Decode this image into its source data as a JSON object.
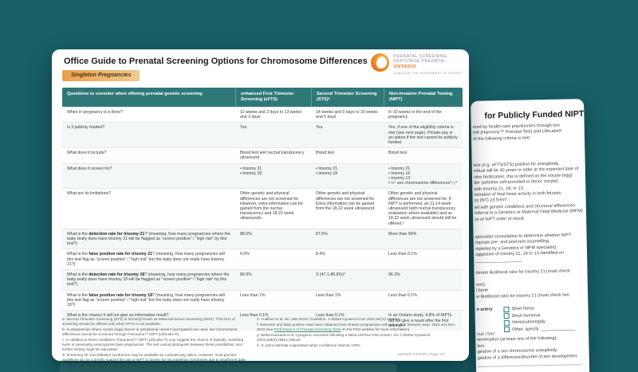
{
  "colors": {
    "background_teal": "#175F66",
    "table_header_teal": "#2F7878",
    "brand_orange": "#EE7623",
    "badge_gradient_start": "#EB9F4B",
    "badge_gradient_end": "#EECB90"
  },
  "page1": {
    "title": "Office Guide to Prenatal Screening Options for Chromosome Differences",
    "badge": "Singleton Pregnancies",
    "logo": {
      "line1": "PRENATAL SCREENING",
      "line2": "DÉPISTAGE PRÉNATAL",
      "line3": "ONTARIO",
      "line4": "FUNDED BY THE GOVERNMENT OF ONTARIO"
    },
    "table": {
      "headers": [
        "Questions to consider when offering prenatal genetic screening",
        "enhanced First Trimester Screening (eFTS)",
        "Second Trimester Screening (STS)ᵃ",
        "Non-Invasive Prenatal Testing (NIPT)"
      ],
      "rows": [
        {
          "q_pre": "When in pregnancy is it done?",
          "q_bold": "",
          "q_post": "",
          "efts": "11 weeks and 2 days to 13 weeks and 3 days",
          "sts": "14 weeks and 0 days to 20 weeks and 6 days",
          "nipt": "9–10 weeks to the end of the pregnancy"
        },
        {
          "q_pre": "Is it publicly funded?",
          "q_bold": "",
          "q_post": "",
          "efts": "Yes",
          "sts": "Yes",
          "nipt": "Yes, if one of the eligibility criteria is met (see next page). Private-pay is an option if the test cannot be publicly funded."
        },
        {
          "q_pre": "What does it include?",
          "q_bold": "",
          "q_post": "",
          "efts": "Blood test and nuchal translucency ultrasound",
          "sts": "Blood test",
          "nipt": "Blood test"
        },
        {
          "q_pre": "What does it screen for?",
          "q_bold": "",
          "q_post": "",
          "efts": "• trisomy 21\n• trisomy 18",
          "sts": "• trisomy 21\n• trisomy 18",
          "nipt": "• trisomy 21\n• trisomy 18\n• trisomy 13\n• +/- sex chromosome differencesᵇ,ᶜ,ᵈ"
        },
        {
          "q_pre": "What are its limitations?",
          "q_bold": "",
          "q_post": "",
          "efts": "Other genetic and physical differences are not screened for. However, extra information can be gained from the nuchal translucency and 18-22 week ultrasounds.",
          "sts": "Other genetic and physical differences are not screened for. Extra information can be gained from the 18-22 week ultrasound.",
          "nipt": "Other genetic and physical differences are not screened for. If NIPT is performed, an 11-14 week ultrasound (with nuchal translucency evaluation where available) and an 18-22 week ultrasound should still be offered.ᵈ"
        },
        {
          "q_pre": "What is the ",
          "q_bold": "detection rate for trisomy 21",
          "q_post": "?ᶠ (meaning, how many pregnancies where the baby really does have trisomy 21 will be flagged as “screen positive” / “high risk” by this test?)",
          "efts": "88.0%",
          "sts": "87.5%",
          "nipt": "More than 99%"
        },
        {
          "q_pre": "What is the ",
          "q_bold": "false positive rate for trisomy 21",
          "q_post": "? (meaning, how many pregnancies will this test flag as “screen positive” / “high risk” but the baby does not really have trisomy 21?)",
          "efts": "6.0%",
          "sts": "8.4%",
          "nipt": "Less than 0.1%"
        },
        {
          "q_pre": "What is the ",
          "q_bold": "detection rate for trisomy 18",
          "q_post": "? (meaning, how many pregnancies where the baby really does have trisomy 18 will be flagged as “screen positive” / “high risk” by this test?)",
          "efts": "86.8%",
          "sts": "S (47.1-86.8%)ʰ",
          "nipt": "96.3%"
        },
        {
          "q_pre": "What is the ",
          "q_bold": "false positive rate for trisomy 18",
          "q_post": "? (meaning, how many pregnancies will this test flag as “screen positive” / “high risk” but the baby does not really have trisomy 18?)",
          "efts": "Less than 1%",
          "sts": "Less than 1%",
          "nipt": "Less than 0.1%"
        },
        {
          "q_pre": "What is the chance it will not give an informative result?",
          "q_bold": "",
          "q_post": "",
          "efts": "Less than 0.1%",
          "sts": "Less than 0.1%",
          "nipt": "In an Ontario study, 4.8% of NIPTs did not give a result after the first attempt.ᵍ"
        }
      ]
    },
    "footnotes_left": [
      "a- Second Trimester Screening (STS) is formerly known as Maternal Serum Screening (MSS). This form of screening should be offered only when eFTS is not available.",
      "b- In pregnancies where oocyte (egg) donors or gestational carriers (surrogates) are used, sex chromosome differences cannot be screened through Panorama™ NIPT (LifeLabs ®).",
      "c- In addition to these conditions, Panorama™ NIPT (LifeLabs ®) may suggest the chance of triploidy, vanishing twins or previously unrecognized twin pregnancies. The test cannot distinguish between these possibilities, and further testing might be warranted.",
      "d- Screening for microdeletion syndromes may be available as a private-pay option. However, most practice guidelines do not currently support the use of NIPT to screen for microdeletion syndromes due to insufficient data on the technical and clinical validity of screening for these syndromes."
    ],
    "footnotes_right": {
      "e": "e- Audibert et al. No. 456 SOGC Guideline. J Obstet Gynaecol Can 2024;46(11):102694.",
      "f_pre": "f- Detection and false positive rates were obtained from Ontario pregnancies with a due date between Sept. 2016 and Dec. 2023 (see ",
      "f_link": "Performance of Prenatal Screening Tests",
      "f_post": " on the PSO website for more information).",
      "g": "g- Bellai-Dussault et al. Cytogenic outcomes following a failed cell-free DNA screen. Am J Obstet Gynaecol 2023;229(3):168e1-168.e8.",
      "h": "h- S: point estimate suppressed when confidence interval >20%."
    },
    "footer": "Updated 03/2025 | Page 1/2"
  },
  "page2": {
    "title": "for Publicly Funded NIPT",
    "intro": "ered by health-care practitioners through two\nH® (Harmony™ Prenatal Test) and LifeLabs®\nof the following criteria is met:",
    "criteria": "test (e.g. eFTS/STS) positive for aneuploidy.\nvidual will be 40 years or older at the expected date of\nvitro fertilization, this is defined as the oocyte (egg)\nder (whether self-provided or donor oocyte).\nwith trisomy 21, 18, or 13.\nnstration of fetal heart activity in both fetuses.\ncy (NT) ≥3.5mm*.",
    "italic_note": "ed with genetic conditions and structural differences\nreferral to a Genetics or Maternal Fetal Medicine (MFM)\nss of NIPT order or result.",
    "section2": "specialist consultation to determine whether NIPT\nropriate pre- and post-test counselling.\nmpleted by a Genetics or MFM specialist):\nuggestive of trisomy 21, 18 or 13 identified on\n___________________",
    "likelihood_heading": "derate likelihood ratio for trisomy 21 (must check",
    "likelihood_items": "mm)\nl bone\nw likelihood ratio for trisomy 21 (must check two",
    "artery_fragment": "n artery",
    "checkboxes": [
      "Short femur",
      "Short humerus",
      "Ventriculomegaly",
      "Other, specify: ______________"
    ],
    "bottom": "cus / foci\ntermination (at least one of the following):\ntion.\ngestive of a sex chromosome aneuploidy.\ngestive of a difference/disorder of sex development."
  }
}
